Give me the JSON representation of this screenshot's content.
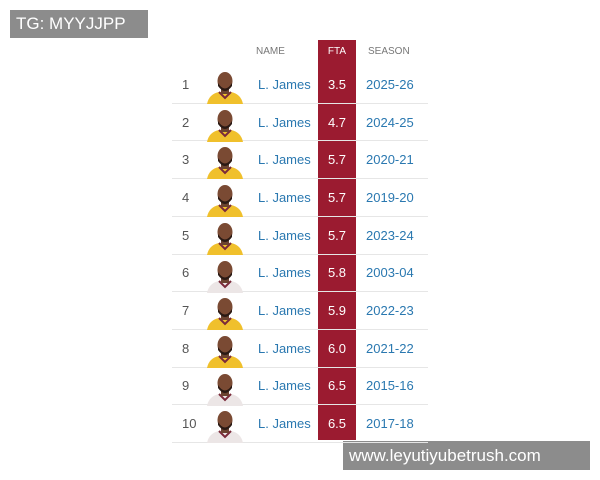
{
  "watermark_top": "TG: MYYJJPP",
  "watermark_bottom": "www.leyutiyubetrush.com",
  "table": {
    "headers": {
      "name": "NAME",
      "fta": "FTA",
      "season": "SEASON"
    },
    "rows": [
      {
        "rank": 1,
        "name": "L. James",
        "fta": "3.5",
        "season": "2025-26",
        "jersey": "#f0c02c"
      },
      {
        "rank": 2,
        "name": "L. James",
        "fta": "4.7",
        "season": "2024-25",
        "jersey": "#f0c02c"
      },
      {
        "rank": 3,
        "name": "L. James",
        "fta": "5.7",
        "season": "2020-21",
        "jersey": "#f0c02c"
      },
      {
        "rank": 4,
        "name": "L. James",
        "fta": "5.7",
        "season": "2019-20",
        "jersey": "#f0c02c"
      },
      {
        "rank": 5,
        "name": "L. James",
        "fta": "5.7",
        "season": "2023-24",
        "jersey": "#f0c02c"
      },
      {
        "rank": 6,
        "name": "L. James",
        "fta": "5.8",
        "season": "2003-04",
        "jersey": "#ece6e6"
      },
      {
        "rank": 7,
        "name": "L. James",
        "fta": "5.9",
        "season": "2022-23",
        "jersey": "#f0c02c"
      },
      {
        "rank": 8,
        "name": "L. James",
        "fta": "6.0",
        "season": "2021-22",
        "jersey": "#f0c02c"
      },
      {
        "rank": 9,
        "name": "L. James",
        "fta": "6.5",
        "season": "2015-16",
        "jersey": "#ece6e6"
      },
      {
        "rank": 10,
        "name": "L. James",
        "fta": "6.5",
        "season": "2017-18",
        "jersey": "#ece6e6"
      }
    ]
  }
}
